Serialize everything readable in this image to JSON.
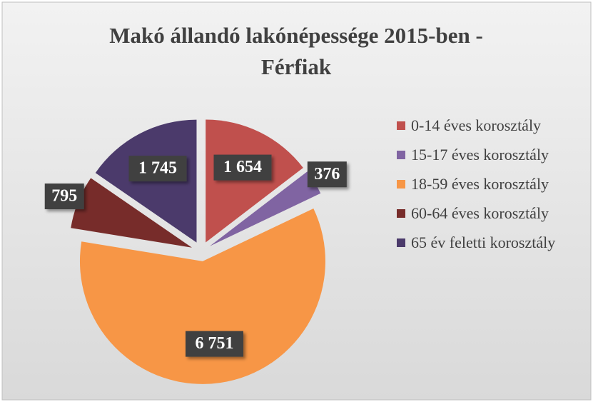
{
  "chart_data": {
    "type": "pie",
    "title": "Makó állandó lakónépessége 2015-ben - Férfiak",
    "categories": [
      "0-14 éves korosztály",
      "15-17 éves korosztály",
      "18-59 éves korosztály",
      "60-64 éves korosztály",
      "65 év feletti korosztály"
    ],
    "values": [
      1654,
      376,
      6751,
      795,
      1745
    ],
    "value_labels": [
      "1 654",
      "376",
      "6 751",
      "795",
      "1 745"
    ],
    "colors": [
      "#c0504d",
      "#8064a2",
      "#f79646",
      "#772c2a",
      "#4b3a6b"
    ],
    "legend": "right"
  }
}
